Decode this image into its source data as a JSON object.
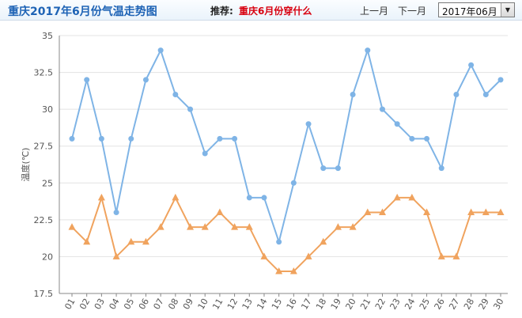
{
  "header": {
    "title": "重庆2017年6月份气温走势图",
    "recommend_label": "推荐:",
    "recommend_link": "重庆6月份穿什么",
    "prev_month": "上一月",
    "next_month": "下一月",
    "month_select_value": "2017年06月",
    "month_select_arrow": "▼"
  },
  "colors": {
    "high_series": "#7fb4e6",
    "low_series": "#f0a35e",
    "grid": "#e3e3e3",
    "axis": "#888888",
    "title": "#1e63b5",
    "link": "#d8000f"
  },
  "chart_data": {
    "type": "line",
    "ylabel": "温度(℃)",
    "xlabel": "",
    "ylim": [
      17.5,
      35
    ],
    "yticks": [
      17.5,
      20,
      22.5,
      25,
      27.5,
      30,
      32.5,
      35
    ],
    "grid": true,
    "categories": [
      "01",
      "02",
      "03",
      "04",
      "05",
      "06",
      "07",
      "08",
      "09",
      "10",
      "11",
      "12",
      "13",
      "14",
      "15",
      "16",
      "17",
      "18",
      "19",
      "20",
      "21",
      "22",
      "23",
      "24",
      "25",
      "26",
      "27",
      "28",
      "29",
      "30"
    ],
    "series": [
      {
        "marker": "circle",
        "color": "#7fb4e6",
        "values": [
          28,
          32,
          28,
          23,
          28,
          32,
          34,
          31,
          30,
          27,
          28,
          28,
          24,
          24,
          21,
          25,
          29,
          26,
          26,
          31,
          34,
          30,
          29,
          28,
          28,
          26,
          31,
          33,
          31,
          32
        ]
      },
      {
        "marker": "triangle",
        "color": "#f0a35e",
        "values": [
          22,
          21,
          24,
          20,
          21,
          21,
          22,
          24,
          22,
          22,
          23,
          22,
          22,
          20,
          19,
          19,
          20,
          21,
          22,
          22,
          23,
          23,
          24,
          24,
          23,
          20,
          20,
          23,
          23,
          23
        ]
      }
    ]
  }
}
